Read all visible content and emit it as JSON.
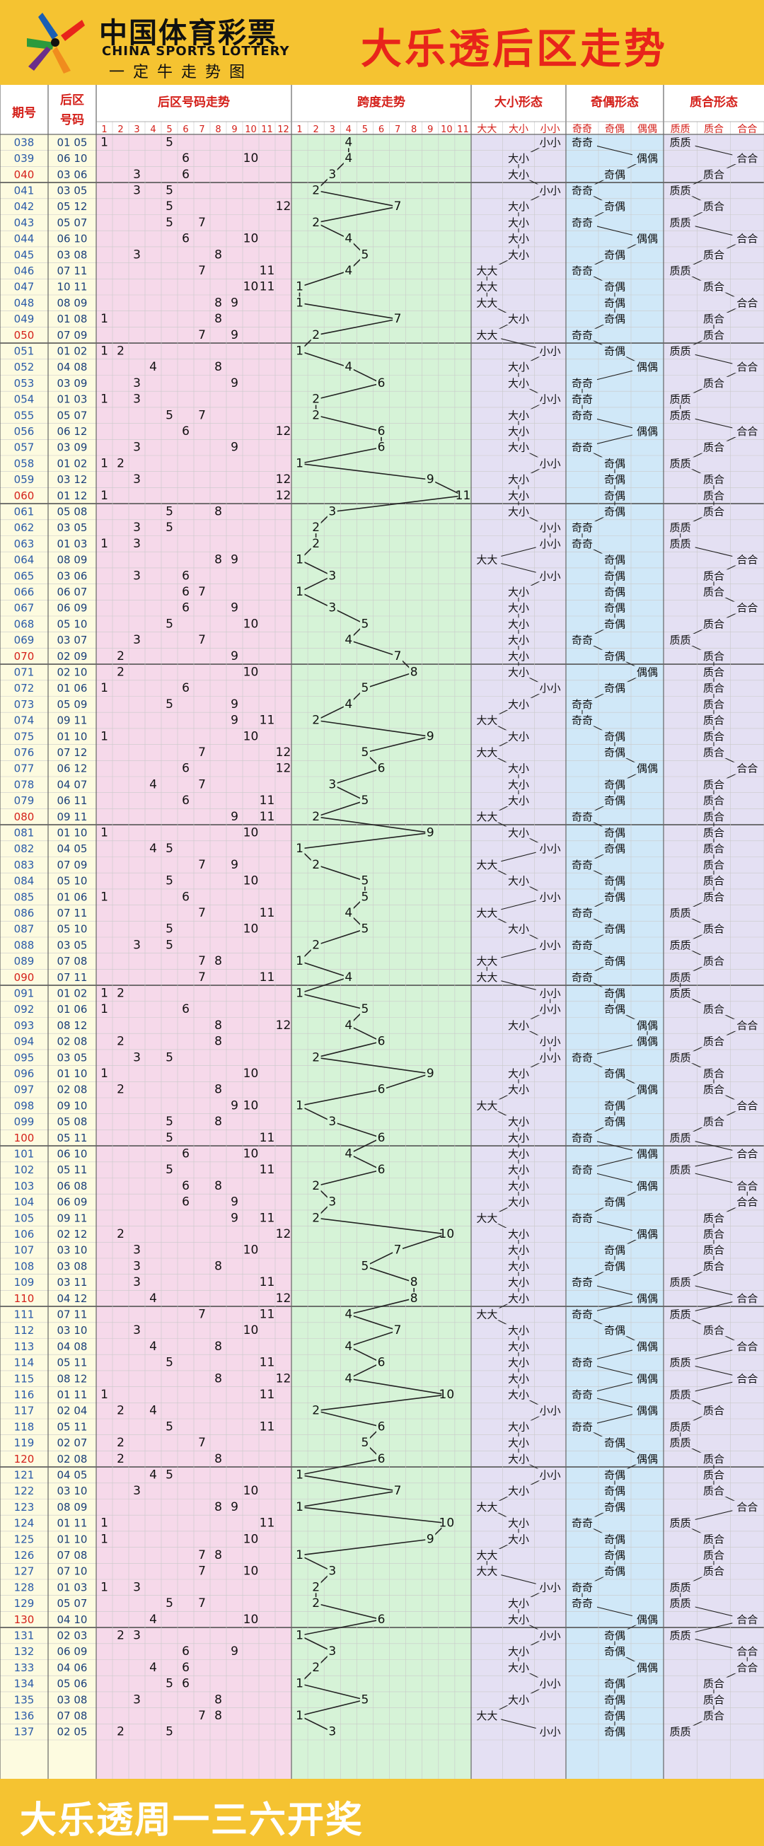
{
  "header": {
    "brand_cn": "中国体育彩票",
    "brand_en": "CHINA SPORTS LOTTERY",
    "brand_sub": "一定牛走势图",
    "title": "大乐透后区走势"
  },
  "footer": {
    "text": "大乐透周一三六开奖"
  },
  "colors": {
    "background": "#f5c331",
    "title_red": "#e8241b",
    "col_issue_bg": "#fdfbe0",
    "col_back_bg": "#fdfbe0",
    "trend_bg": "#f6d9ea",
    "span_bg": "#d6f3d7",
    "size_bg": "#e4e0f3",
    "parity_bg": "#d0e8f8",
    "prime_bg": "#e4e0f3",
    "grid": "#c9c9c9",
    "header_text": "#d4201a",
    "issue_blue": "#2a5aa8"
  },
  "chart_data": {
    "type": "table",
    "title": "大乐透后区走势",
    "columns": {
      "issue": "期号",
      "back_line1": "后区",
      "back_line2": "号码",
      "trend": "后区号码走势",
      "span": "跨度走势",
      "size": "大小形态",
      "parity": "奇偶形态",
      "prime": "质合形态"
    },
    "trend_ticks": [
      "1",
      "2",
      "3",
      "4",
      "5",
      "6",
      "7",
      "8",
      "9",
      "10",
      "11",
      "12"
    ],
    "span_ticks": [
      "1",
      "2",
      "3",
      "4",
      "5",
      "6",
      "7",
      "8",
      "9",
      "10",
      "11"
    ],
    "size_options": [
      "大大",
      "大小",
      "小小"
    ],
    "parity_options": [
      "奇奇",
      "奇偶",
      "偶偶"
    ],
    "prime_options": [
      "质质",
      "质合",
      "合合"
    ],
    "rows": [
      {
        "issue": "038",
        "a": 1,
        "b": 5,
        "span": 4,
        "size": "小小",
        "parity": "奇奇",
        "prime": "质质"
      },
      {
        "issue": "039",
        "a": 6,
        "b": 10,
        "span": 4,
        "size": "大小",
        "parity": "偶偶",
        "prime": "合合"
      },
      {
        "issue": "040",
        "a": 3,
        "b": 6,
        "span": 3,
        "size": "大小",
        "parity": "奇偶",
        "prime": "质合"
      },
      {
        "issue": "041",
        "a": 3,
        "b": 5,
        "span": 2,
        "size": "小小",
        "parity": "奇奇",
        "prime": "质质"
      },
      {
        "issue": "042",
        "a": 5,
        "b": 12,
        "span": 7,
        "size": "大小",
        "parity": "奇偶",
        "prime": "质合"
      },
      {
        "issue": "043",
        "a": 5,
        "b": 7,
        "span": 2,
        "size": "大小",
        "parity": "奇奇",
        "prime": "质质"
      },
      {
        "issue": "044",
        "a": 6,
        "b": 10,
        "span": 4,
        "size": "大小",
        "parity": "偶偶",
        "prime": "合合"
      },
      {
        "issue": "045",
        "a": 3,
        "b": 8,
        "span": 5,
        "size": "大小",
        "parity": "奇偶",
        "prime": "质合"
      },
      {
        "issue": "046",
        "a": 7,
        "b": 11,
        "span": 4,
        "size": "大大",
        "parity": "奇奇",
        "prime": "质质"
      },
      {
        "issue": "047",
        "a": 10,
        "b": 11,
        "span": 1,
        "size": "大大",
        "parity": "奇偶",
        "prime": "质合"
      },
      {
        "issue": "048",
        "a": 8,
        "b": 9,
        "span": 1,
        "size": "大大",
        "parity": "奇偶",
        "prime": "合合"
      },
      {
        "issue": "049",
        "a": 1,
        "b": 8,
        "span": 7,
        "size": "大小",
        "parity": "奇偶",
        "prime": "质合"
      },
      {
        "issue": "050",
        "a": 7,
        "b": 9,
        "span": 2,
        "size": "大大",
        "parity": "奇奇",
        "prime": "质合"
      },
      {
        "issue": "051",
        "a": 1,
        "b": 2,
        "span": 1,
        "size": "小小",
        "parity": "奇偶",
        "prime": "质质"
      },
      {
        "issue": "052",
        "a": 4,
        "b": 8,
        "span": 4,
        "size": "大小",
        "parity": "偶偶",
        "prime": "合合"
      },
      {
        "issue": "053",
        "a": 3,
        "b": 9,
        "span": 6,
        "size": "大小",
        "parity": "奇奇",
        "prime": "质合"
      },
      {
        "issue": "054",
        "a": 1,
        "b": 3,
        "span": 2,
        "size": "小小",
        "parity": "奇奇",
        "prime": "质质"
      },
      {
        "issue": "055",
        "a": 5,
        "b": 7,
        "span": 2,
        "size": "大小",
        "parity": "奇奇",
        "prime": "质质"
      },
      {
        "issue": "056",
        "a": 6,
        "b": 12,
        "span": 6,
        "size": "大小",
        "parity": "偶偶",
        "prime": "合合"
      },
      {
        "issue": "057",
        "a": 3,
        "b": 9,
        "span": 6,
        "size": "大小",
        "parity": "奇奇",
        "prime": "质合"
      },
      {
        "issue": "058",
        "a": 1,
        "b": 2,
        "span": 1,
        "size": "小小",
        "parity": "奇偶",
        "prime": "质质"
      },
      {
        "issue": "059",
        "a": 3,
        "b": 12,
        "span": 9,
        "size": "大小",
        "parity": "奇偶",
        "prime": "质合"
      },
      {
        "issue": "060",
        "a": 1,
        "b": 12,
        "span": 11,
        "size": "大小",
        "parity": "奇偶",
        "prime": "质合"
      },
      {
        "issue": "061",
        "a": 5,
        "b": 8,
        "span": 3,
        "size": "大小",
        "parity": "奇偶",
        "prime": "质合"
      },
      {
        "issue": "062",
        "a": 3,
        "b": 5,
        "span": 2,
        "size": "小小",
        "parity": "奇奇",
        "prime": "质质"
      },
      {
        "issue": "063",
        "a": 1,
        "b": 3,
        "span": 2,
        "size": "小小",
        "parity": "奇奇",
        "prime": "质质"
      },
      {
        "issue": "064",
        "a": 8,
        "b": 9,
        "span": 1,
        "size": "大大",
        "parity": "奇偶",
        "prime": "合合"
      },
      {
        "issue": "065",
        "a": 3,
        "b": 6,
        "span": 3,
        "size": "小小",
        "parity": "奇偶",
        "prime": "质合"
      },
      {
        "issue": "066",
        "a": 6,
        "b": 7,
        "span": 1,
        "size": "大小",
        "parity": "奇偶",
        "prime": "质合"
      },
      {
        "issue": "067",
        "a": 6,
        "b": 9,
        "span": 3,
        "size": "大小",
        "parity": "奇偶",
        "prime": "合合"
      },
      {
        "issue": "068",
        "a": 5,
        "b": 10,
        "span": 5,
        "size": "大小",
        "parity": "奇偶",
        "prime": "质合"
      },
      {
        "issue": "069",
        "a": 3,
        "b": 7,
        "span": 4,
        "size": "大小",
        "parity": "奇奇",
        "prime": "质质"
      },
      {
        "issue": "070",
        "a": 2,
        "b": 9,
        "span": 7,
        "size": "大小",
        "parity": "奇偶",
        "prime": "质合"
      },
      {
        "issue": "071",
        "a": 2,
        "b": 10,
        "span": 8,
        "size": "大小",
        "parity": "偶偶",
        "prime": "质合"
      },
      {
        "issue": "072",
        "a": 1,
        "b": 6,
        "span": 5,
        "size": "小小",
        "parity": "奇偶",
        "prime": "质合"
      },
      {
        "issue": "073",
        "a": 5,
        "b": 9,
        "span": 4,
        "size": "大小",
        "parity": "奇奇",
        "prime": "质合"
      },
      {
        "issue": "074",
        "a": 9,
        "b": 11,
        "span": 2,
        "size": "大大",
        "parity": "奇奇",
        "prime": "质合"
      },
      {
        "issue": "075",
        "a": 1,
        "b": 10,
        "span": 9,
        "size": "大小",
        "parity": "奇偶",
        "prime": "质合"
      },
      {
        "issue": "076",
        "a": 7,
        "b": 12,
        "span": 5,
        "size": "大大",
        "parity": "奇偶",
        "prime": "质合"
      },
      {
        "issue": "077",
        "a": 6,
        "b": 12,
        "span": 6,
        "size": "大小",
        "parity": "偶偶",
        "prime": "合合"
      },
      {
        "issue": "078",
        "a": 4,
        "b": 7,
        "span": 3,
        "size": "大小",
        "parity": "奇偶",
        "prime": "质合"
      },
      {
        "issue": "079",
        "a": 6,
        "b": 11,
        "span": 5,
        "size": "大小",
        "parity": "奇偶",
        "prime": "质合"
      },
      {
        "issue": "080",
        "a": 9,
        "b": 11,
        "span": 2,
        "size": "大大",
        "parity": "奇奇",
        "prime": "质合"
      },
      {
        "issue": "081",
        "a": 1,
        "b": 10,
        "span": 9,
        "size": "大小",
        "parity": "奇偶",
        "prime": "质合"
      },
      {
        "issue": "082",
        "a": 4,
        "b": 5,
        "span": 1,
        "size": "小小",
        "parity": "奇偶",
        "prime": "质合"
      },
      {
        "issue": "083",
        "a": 7,
        "b": 9,
        "span": 2,
        "size": "大大",
        "parity": "奇奇",
        "prime": "质合"
      },
      {
        "issue": "084",
        "a": 5,
        "b": 10,
        "span": 5,
        "size": "大小",
        "parity": "奇偶",
        "prime": "质合"
      },
      {
        "issue": "085",
        "a": 1,
        "b": 6,
        "span": 5,
        "size": "小小",
        "parity": "奇偶",
        "prime": "质合"
      },
      {
        "issue": "086",
        "a": 7,
        "b": 11,
        "span": 4,
        "size": "大大",
        "parity": "奇奇",
        "prime": "质质"
      },
      {
        "issue": "087",
        "a": 5,
        "b": 10,
        "span": 5,
        "size": "大小",
        "parity": "奇偶",
        "prime": "质合"
      },
      {
        "issue": "088",
        "a": 3,
        "b": 5,
        "span": 2,
        "size": "小小",
        "parity": "奇奇",
        "prime": "质质"
      },
      {
        "issue": "089",
        "a": 7,
        "b": 8,
        "span": 1,
        "size": "大大",
        "parity": "奇偶",
        "prime": "质合"
      },
      {
        "issue": "090",
        "a": 7,
        "b": 11,
        "span": 4,
        "size": "大大",
        "parity": "奇奇",
        "prime": "质质"
      },
      {
        "issue": "091",
        "a": 1,
        "b": 2,
        "span": 1,
        "size": "小小",
        "parity": "奇偶",
        "prime": "质质"
      },
      {
        "issue": "092",
        "a": 1,
        "b": 6,
        "span": 5,
        "size": "小小",
        "parity": "奇偶",
        "prime": "质合"
      },
      {
        "issue": "093",
        "a": 8,
        "b": 12,
        "span": 4,
        "size": "大小",
        "parity": "偶偶",
        "prime": "合合"
      },
      {
        "issue": "094",
        "a": 2,
        "b": 8,
        "span": 6,
        "size": "小小",
        "parity": "偶偶",
        "prime": "质合"
      },
      {
        "issue": "095",
        "a": 3,
        "b": 5,
        "span": 2,
        "size": "小小",
        "parity": "奇奇",
        "prime": "质质"
      },
      {
        "issue": "096",
        "a": 1,
        "b": 10,
        "span": 9,
        "size": "大小",
        "parity": "奇偶",
        "prime": "质合"
      },
      {
        "issue": "097",
        "a": 2,
        "b": 8,
        "span": 6,
        "size": "大小",
        "parity": "偶偶",
        "prime": "质合"
      },
      {
        "issue": "098",
        "a": 9,
        "b": 10,
        "span": 1,
        "size": "大大",
        "parity": "奇偶",
        "prime": "合合"
      },
      {
        "issue": "099",
        "a": 5,
        "b": 8,
        "span": 3,
        "size": "大小",
        "parity": "奇偶",
        "prime": "质合"
      },
      {
        "issue": "100",
        "a": 5,
        "b": 11,
        "span": 6,
        "size": "大小",
        "parity": "奇奇",
        "prime": "质质"
      },
      {
        "issue": "101",
        "a": 6,
        "b": 10,
        "span": 4,
        "size": "大小",
        "parity": "偶偶",
        "prime": "合合"
      },
      {
        "issue": "102",
        "a": 5,
        "b": 11,
        "span": 6,
        "size": "大小",
        "parity": "奇奇",
        "prime": "质质"
      },
      {
        "issue": "103",
        "a": 6,
        "b": 8,
        "span": 2,
        "size": "大小",
        "parity": "偶偶",
        "prime": "合合"
      },
      {
        "issue": "104",
        "a": 6,
        "b": 9,
        "span": 3,
        "size": "大小",
        "parity": "奇偶",
        "prime": "合合"
      },
      {
        "issue": "105",
        "a": 9,
        "b": 11,
        "span": 2,
        "size": "大大",
        "parity": "奇奇",
        "prime": "质合"
      },
      {
        "issue": "106",
        "a": 2,
        "b": 12,
        "span": 10,
        "size": "大小",
        "parity": "偶偶",
        "prime": "质合"
      },
      {
        "issue": "107",
        "a": 3,
        "b": 10,
        "span": 7,
        "size": "大小",
        "parity": "奇偶",
        "prime": "质合"
      },
      {
        "issue": "108",
        "a": 3,
        "b": 8,
        "span": 5,
        "size": "大小",
        "parity": "奇偶",
        "prime": "质合"
      },
      {
        "issue": "109",
        "a": 3,
        "b": 11,
        "span": 8,
        "size": "大小",
        "parity": "奇奇",
        "prime": "质质"
      },
      {
        "issue": "110",
        "a": 4,
        "b": 12,
        "span": 8,
        "size": "大小",
        "parity": "偶偶",
        "prime": "合合"
      },
      {
        "issue": "111",
        "a": 7,
        "b": 11,
        "span": 4,
        "size": "大大",
        "parity": "奇奇",
        "prime": "质质"
      },
      {
        "issue": "112",
        "a": 3,
        "b": 10,
        "span": 7,
        "size": "大小",
        "parity": "奇偶",
        "prime": "质合"
      },
      {
        "issue": "113",
        "a": 4,
        "b": 8,
        "span": 4,
        "size": "大小",
        "parity": "偶偶",
        "prime": "合合"
      },
      {
        "issue": "114",
        "a": 5,
        "b": 11,
        "span": 6,
        "size": "大小",
        "parity": "奇奇",
        "prime": "质质"
      },
      {
        "issue": "115",
        "a": 8,
        "b": 12,
        "span": 4,
        "size": "大小",
        "parity": "偶偶",
        "prime": "合合"
      },
      {
        "issue": "116",
        "a": 1,
        "b": 11,
        "span": 10,
        "size": "大小",
        "parity": "奇奇",
        "prime": "质质"
      },
      {
        "issue": "117",
        "a": 2,
        "b": 4,
        "span": 2,
        "size": "小小",
        "parity": "偶偶",
        "prime": "质合"
      },
      {
        "issue": "118",
        "a": 5,
        "b": 11,
        "span": 6,
        "size": "大小",
        "parity": "奇奇",
        "prime": "质质"
      },
      {
        "issue": "119",
        "a": 2,
        "b": 7,
        "span": 5,
        "size": "大小",
        "parity": "奇偶",
        "prime": "质质"
      },
      {
        "issue": "120",
        "a": 2,
        "b": 8,
        "span": 6,
        "size": "大小",
        "parity": "偶偶",
        "prime": "质合"
      },
      {
        "issue": "121",
        "a": 4,
        "b": 5,
        "span": 1,
        "size": "小小",
        "parity": "奇偶",
        "prime": "质合"
      },
      {
        "issue": "122",
        "a": 3,
        "b": 10,
        "span": 7,
        "size": "大小",
        "parity": "奇偶",
        "prime": "质合"
      },
      {
        "issue": "123",
        "a": 8,
        "b": 9,
        "span": 1,
        "size": "大大",
        "parity": "奇偶",
        "prime": "合合"
      },
      {
        "issue": "124",
        "a": 1,
        "b": 11,
        "span": 10,
        "size": "大小",
        "parity": "奇奇",
        "prime": "质质"
      },
      {
        "issue": "125",
        "a": 1,
        "b": 10,
        "span": 9,
        "size": "大小",
        "parity": "奇偶",
        "prime": "质合"
      },
      {
        "issue": "126",
        "a": 7,
        "b": 8,
        "span": 1,
        "size": "大大",
        "parity": "奇偶",
        "prime": "质合"
      },
      {
        "issue": "127",
        "a": 7,
        "b": 10,
        "span": 3,
        "size": "大大",
        "parity": "奇偶",
        "prime": "质合"
      },
      {
        "issue": "128",
        "a": 1,
        "b": 3,
        "span": 2,
        "size": "小小",
        "parity": "奇奇",
        "prime": "质质"
      },
      {
        "issue": "129",
        "a": 5,
        "b": 7,
        "span": 2,
        "size": "大小",
        "parity": "奇奇",
        "prime": "质质"
      },
      {
        "issue": "130",
        "a": 4,
        "b": 10,
        "span": 6,
        "size": "大小",
        "parity": "偶偶",
        "prime": "合合"
      },
      {
        "issue": "131",
        "a": 2,
        "b": 3,
        "span": 1,
        "size": "小小",
        "parity": "奇偶",
        "prime": "质质"
      },
      {
        "issue": "132",
        "a": 6,
        "b": 9,
        "span": 3,
        "size": "大小",
        "parity": "奇偶",
        "prime": "合合"
      },
      {
        "issue": "133",
        "a": 4,
        "b": 6,
        "span": 2,
        "size": "大小",
        "parity": "偶偶",
        "prime": "合合"
      },
      {
        "issue": "134",
        "a": 5,
        "b": 6,
        "span": 1,
        "size": "小小",
        "parity": "奇偶",
        "prime": "质合"
      },
      {
        "issue": "135",
        "a": 3,
        "b": 8,
        "span": 5,
        "size": "大小",
        "parity": "奇偶",
        "prime": "质合"
      },
      {
        "issue": "136",
        "a": 7,
        "b": 8,
        "span": 1,
        "size": "大大",
        "parity": "奇偶",
        "prime": "质合"
      },
      {
        "issue": "137",
        "a": 2,
        "b": 5,
        "span": 3,
        "size": "小小",
        "parity": "奇偶",
        "prime": "质质"
      }
    ]
  }
}
